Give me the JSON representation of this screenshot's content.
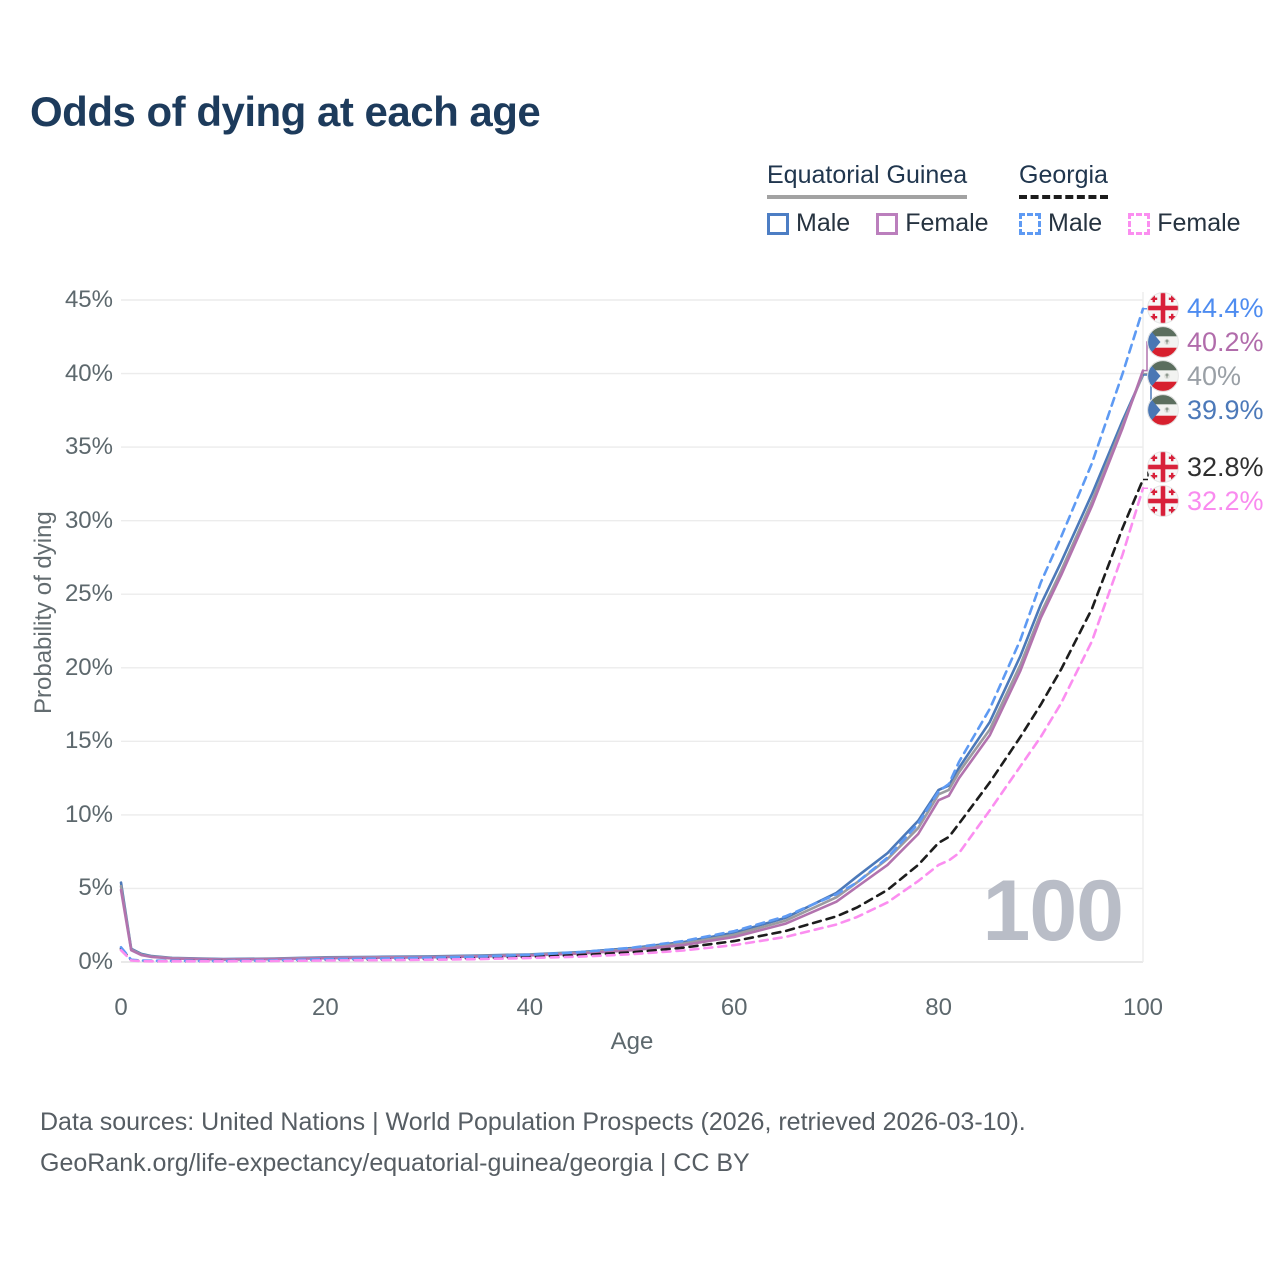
{
  "title": "Odds of dying at each age",
  "legend": {
    "groups": [
      {
        "label": "Equatorial Guinea",
        "line_style": "solid",
        "line_color": "#a2a2a2",
        "items": [
          {
            "label": "Male",
            "style": "solid",
            "color": "#4d7ec4"
          },
          {
            "label": "Female",
            "style": "solid",
            "color": "#bb7fbd"
          }
        ]
      },
      {
        "label": "Georgia",
        "line_style": "dashed",
        "line_color": "#1c1c1c",
        "items": [
          {
            "label": "Male",
            "style": "dashed",
            "color": "#5e9af3"
          },
          {
            "label": "Female",
            "style": "dashed",
            "color": "#fb8ef0"
          }
        ]
      }
    ]
  },
  "chart_data": {
    "type": "line",
    "title": "Odds of dying at each age",
    "xlabel": "Age",
    "ylabel": "Probability of dying",
    "xlim": [
      0,
      100
    ],
    "ylim": [
      0,
      45
    ],
    "x_ticks": [
      "0",
      "20",
      "40",
      "60",
      "80",
      "100"
    ],
    "y_ticks": [
      "0%",
      "5%",
      "10%",
      "15%",
      "20%",
      "25%",
      "30%",
      "35%",
      "40%",
      "45%"
    ],
    "grid": "horizontal",
    "legend_position": "top-right",
    "x": [
      0,
      1,
      2,
      3,
      5,
      10,
      15,
      20,
      25,
      30,
      35,
      40,
      45,
      50,
      55,
      60,
      65,
      70,
      72,
      75,
      78,
      80,
      81,
      82,
      85,
      88,
      90,
      92,
      95,
      98,
      100
    ],
    "series": [
      {
        "key": "equatorial-guinea-male",
        "country": "Equatorial Guinea",
        "sex": "Male",
        "style": "solid",
        "color": "#4c79b9",
        "label_color": "#4c79b9",
        "flag": "gq",
        "end_label": "39.9%",
        "values": [
          5.4,
          0.9,
          0.55,
          0.4,
          0.28,
          0.2,
          0.24,
          0.32,
          0.35,
          0.38,
          0.44,
          0.52,
          0.68,
          0.95,
          1.35,
          2.0,
          3.0,
          4.7,
          5.8,
          7.4,
          9.6,
          11.7,
          12.0,
          13.2,
          16.3,
          20.8,
          24.3,
          27.2,
          31.8,
          36.8,
          39.9
        ]
      },
      {
        "key": "equatorial-guinea-both",
        "country": "Equatorial Guinea",
        "sex": "Both sexes",
        "style": "solid",
        "color": "#9b9ba0",
        "label_color": "#9aa0a6",
        "flag": "gq",
        "end_label": "40%",
        "values": [
          5.15,
          0.85,
          0.5,
          0.37,
          0.26,
          0.18,
          0.22,
          0.29,
          0.32,
          0.35,
          0.41,
          0.49,
          0.63,
          0.88,
          1.25,
          1.85,
          2.8,
          4.4,
          5.4,
          7.0,
          9.1,
          11.4,
          11.7,
          12.9,
          15.8,
          20.2,
          23.7,
          26.6,
          31.3,
          36.5,
          40.0
        ]
      },
      {
        "key": "equatorial-guinea-female",
        "country": "Equatorial Guinea",
        "sex": "Female",
        "style": "solid",
        "color": "#b273ae",
        "label_color": "#b16cab",
        "flag": "gq",
        "end_label": "40.2%",
        "values": [
          4.9,
          0.8,
          0.47,
          0.34,
          0.24,
          0.16,
          0.19,
          0.26,
          0.29,
          0.32,
          0.38,
          0.45,
          0.58,
          0.8,
          1.15,
          1.7,
          2.6,
          4.1,
          5.1,
          6.6,
          8.7,
          11.0,
          11.3,
          12.5,
          15.4,
          19.8,
          23.4,
          26.3,
          31.0,
          36.3,
          40.2
        ]
      },
      {
        "key": "georgia-both",
        "country": "Georgia",
        "sex": "Both sexes",
        "style": "dashed",
        "color": "#1d1d1d",
        "label_color": "#2f2f2f",
        "flag": "ge",
        "end_label": "32.8%",
        "values": [
          0.9,
          0.13,
          0.08,
          0.07,
          0.06,
          0.06,
          0.09,
          0.14,
          0.17,
          0.21,
          0.27,
          0.35,
          0.47,
          0.66,
          0.97,
          1.42,
          2.1,
          3.1,
          3.7,
          4.9,
          6.6,
          8.1,
          8.5,
          9.4,
          12.2,
          15.3,
          17.5,
          19.9,
          24.0,
          29.5,
          32.8
        ]
      },
      {
        "key": "georgia-male",
        "country": "Georgia",
        "sex": "Male",
        "style": "dashed",
        "color": "#5e9af3",
        "label_color": "#4e8cf0",
        "flag": "ge",
        "end_label": "44.4%",
        "values": [
          1.0,
          0.15,
          0.1,
          0.09,
          0.08,
          0.07,
          0.11,
          0.19,
          0.23,
          0.29,
          0.37,
          0.49,
          0.67,
          0.97,
          1.42,
          2.1,
          3.1,
          4.6,
          5.4,
          7.1,
          9.4,
          11.6,
          12.1,
          13.6,
          17.2,
          21.9,
          25.8,
          28.9,
          33.9,
          40.0,
          44.4
        ]
      },
      {
        "key": "georgia-female",
        "country": "Georgia",
        "sex": "Female",
        "style": "dashed",
        "color": "#fb8ef0",
        "label_color": "#f98bef",
        "flag": "ge",
        "end_label": "32.2%",
        "values": [
          0.8,
          0.1,
          0.06,
          0.05,
          0.05,
          0.05,
          0.07,
          0.1,
          0.12,
          0.15,
          0.2,
          0.27,
          0.37,
          0.53,
          0.78,
          1.15,
          1.7,
          2.55,
          3.05,
          4.05,
          5.5,
          6.6,
          6.9,
          7.4,
          10.3,
          13.3,
          15.3,
          17.6,
          21.8,
          27.7,
          32.2
        ]
      }
    ]
  },
  "watermark": "100",
  "footer": {
    "line1": "Data sources: United Nations | World Population Prospects (2026, retrieved 2026-03-10).",
    "line2": "GeoRank.org/life-expectancy/equatorial-guinea/georgia | CC BY"
  },
  "colors": {
    "title_text": "#1d3b5c",
    "axis_text": "#5d686d",
    "grid": "#ececec",
    "watermark": "#b9bdc7",
    "footer_text": "#565d63",
    "georgia_flag_red": "#d8203a",
    "eq_guinea_green": "#5b6e5e",
    "eq_guinea_red": "#d7202e",
    "eq_guinea_blue": "#4a77b4"
  }
}
